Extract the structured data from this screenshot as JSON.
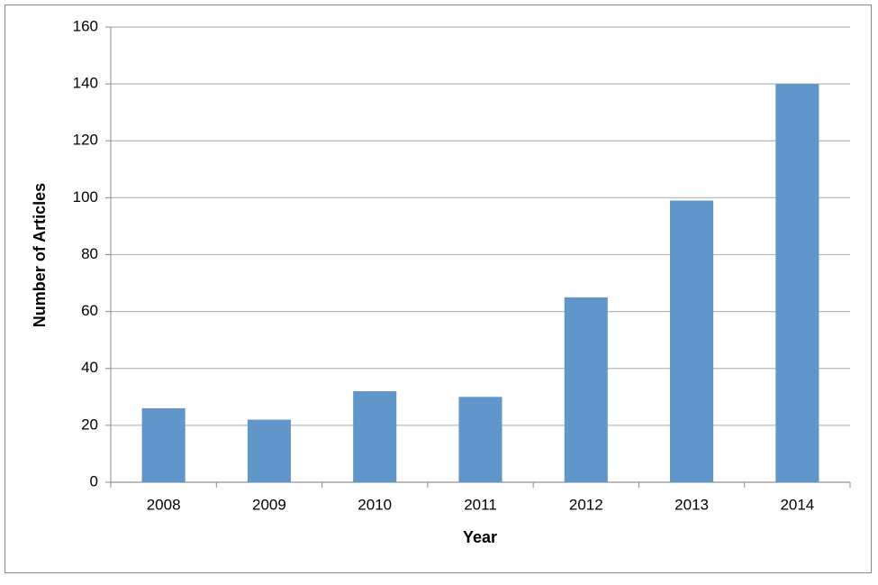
{
  "chart_data": {
    "type": "bar",
    "x_label": "Year",
    "y_label": "Number of Articles",
    "categories": [
      "2008",
      "2009",
      "2010",
      "2011",
      "2012",
      "2013",
      "2014"
    ],
    "values": [
      26,
      22,
      32,
      30,
      65,
      99,
      140
    ],
    "color": "#6096c9",
    "ylim": [
      0,
      160
    ],
    "yticks": [
      0,
      20,
      40,
      60,
      80,
      100,
      120,
      140,
      160
    ],
    "grid": true
  }
}
